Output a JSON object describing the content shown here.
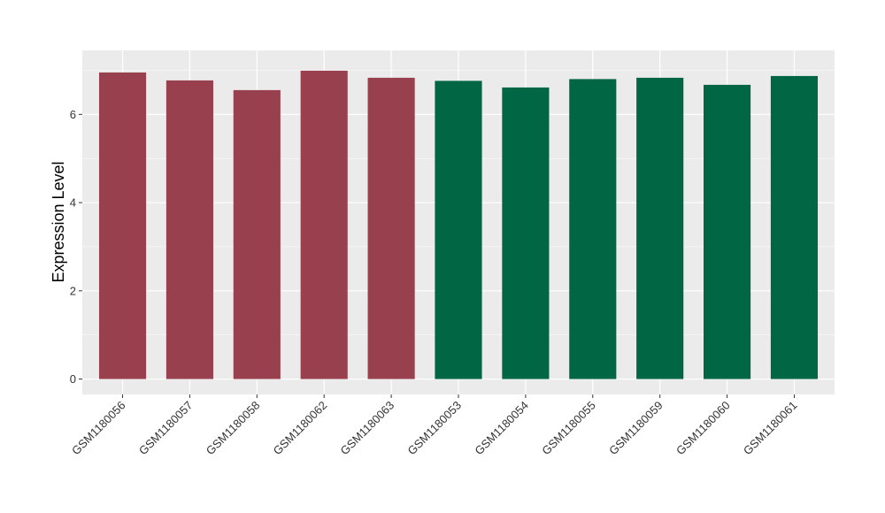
{
  "chart_data": {
    "type": "bar",
    "title": "",
    "xlabel": "",
    "ylabel": "Expression Level",
    "ylim": [
      -0.35,
      7.45
    ],
    "yticks": [
      0,
      2,
      4,
      6
    ],
    "grid": true,
    "categories": [
      "GSM1180056",
      "GSM1180057",
      "GSM1180058",
      "GSM1180062",
      "GSM1180063",
      "GSM1180053",
      "GSM1180054",
      "GSM1180055",
      "GSM1180059",
      "GSM1180060",
      "GSM1180061"
    ],
    "values": [
      6.95,
      6.77,
      6.55,
      6.99,
      6.83,
      6.76,
      6.61,
      6.8,
      6.83,
      6.67,
      6.87
    ],
    "bar_colors": [
      "#99404e",
      "#99404e",
      "#99404e",
      "#99404e",
      "#99404e",
      "#006644",
      "#006644",
      "#006644",
      "#006644",
      "#006644",
      "#006644"
    ],
    "panel_background": "#ebebeb",
    "grid_color": "#ffffff"
  }
}
